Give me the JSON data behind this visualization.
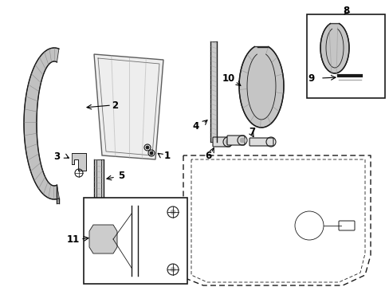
{
  "bg_color": "#ffffff",
  "line_color": "#1a1a1a",
  "fig_width": 4.89,
  "fig_height": 3.6,
  "dpi": 100,
  "channel_stripe_color": "#888888",
  "door_dash_color": "#555555"
}
